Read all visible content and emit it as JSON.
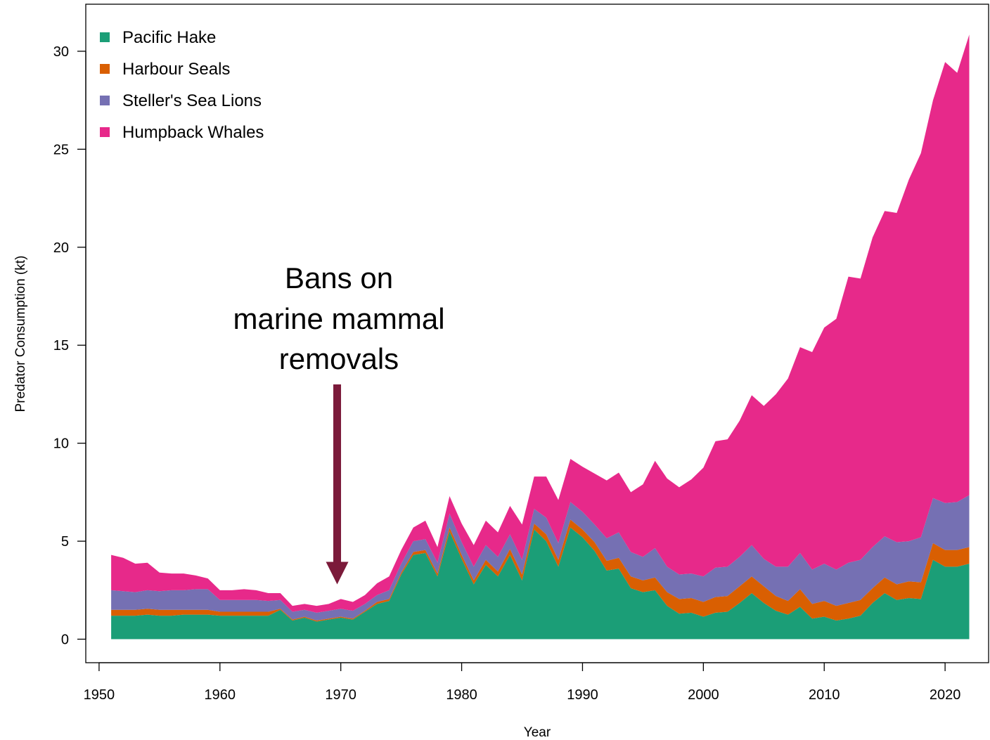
{
  "chart_data": {
    "type": "area",
    "stacked": true,
    "title": "",
    "xlabel": "Year",
    "ylabel": "Predator Consumption (kt)",
    "xlim": [
      1948.9,
      2023.6
    ],
    "ylim": [
      -1.2,
      32.4
    ],
    "x_ticks": [
      1950,
      1960,
      1970,
      1980,
      1990,
      2000,
      2010,
      2020
    ],
    "y_ticks": [
      0,
      5,
      10,
      15,
      20,
      25,
      30
    ],
    "grid": false,
    "legend_position": "top-left",
    "x": [
      1951,
      1952,
      1953,
      1954,
      1955,
      1956,
      1957,
      1958,
      1959,
      1960,
      1961,
      1962,
      1963,
      1964,
      1965,
      1966,
      1967,
      1968,
      1969,
      1970,
      1971,
      1972,
      1973,
      1974,
      1975,
      1976,
      1977,
      1978,
      1979,
      1980,
      1981,
      1982,
      1983,
      1984,
      1985,
      1986,
      1987,
      1988,
      1989,
      1990,
      1991,
      1992,
      1993,
      1994,
      1995,
      1996,
      1997,
      1998,
      1999,
      2000,
      2001,
      2002,
      2003,
      2004,
      2005,
      2006,
      2007,
      2008,
      2009,
      2010,
      2011,
      2012,
      2013,
      2014,
      2015,
      2016,
      2017,
      2018,
      2019,
      2020,
      2021,
      2022
    ],
    "series": [
      {
        "name": "Pacific Hake",
        "color": "#1b9e77",
        "values": [
          1.2,
          1.2,
          1.2,
          1.25,
          1.2,
          1.2,
          1.25,
          1.25,
          1.25,
          1.2,
          1.2,
          1.2,
          1.2,
          1.2,
          1.5,
          0.95,
          1.1,
          0.9,
          1.0,
          1.1,
          1.0,
          1.4,
          1.8,
          1.95,
          3.3,
          4.3,
          4.4,
          3.2,
          5.5,
          4.1,
          2.8,
          3.8,
          3.2,
          4.3,
          3.0,
          5.6,
          5.0,
          3.7,
          5.7,
          5.2,
          4.5,
          3.5,
          3.6,
          2.6,
          2.4,
          2.5,
          1.7,
          1.3,
          1.35,
          1.15,
          1.35,
          1.4,
          1.85,
          2.35,
          1.85,
          1.45,
          1.25,
          1.65,
          1.05,
          1.15,
          0.95,
          1.05,
          1.2,
          1.85,
          2.35,
          2.0,
          2.1,
          2.05,
          4.05,
          3.7,
          3.7,
          3.85
        ]
      },
      {
        "name": "Harbour Seals",
        "color": "#d95f02",
        "values": [
          0.3,
          0.3,
          0.3,
          0.3,
          0.3,
          0.3,
          0.25,
          0.25,
          0.25,
          0.2,
          0.2,
          0.2,
          0.2,
          0.2,
          0.05,
          0.05,
          0.05,
          0.05,
          0.05,
          0.05,
          0.05,
          0.05,
          0.1,
          0.1,
          0.1,
          0.15,
          0.15,
          0.15,
          0.2,
          0.2,
          0.2,
          0.25,
          0.25,
          0.3,
          0.3,
          0.3,
          0.35,
          0.35,
          0.4,
          0.4,
          0.45,
          0.5,
          0.55,
          0.6,
          0.6,
          0.65,
          0.7,
          0.75,
          0.75,
          0.75,
          0.8,
          0.8,
          0.85,
          0.85,
          0.85,
          0.75,
          0.7,
          0.9,
          0.75,
          0.8,
          0.75,
          0.8,
          0.8,
          0.75,
          0.8,
          0.8,
          0.85,
          0.85,
          0.85,
          0.85,
          0.85,
          0.85
        ]
      },
      {
        "name": "Steller's Sea Lions",
        "color": "#7570b3",
        "values": [
          1.0,
          0.95,
          0.9,
          0.95,
          0.95,
          1.0,
          1.0,
          1.05,
          1.05,
          0.6,
          0.6,
          0.6,
          0.6,
          0.55,
          0.45,
          0.4,
          0.35,
          0.4,
          0.4,
          0.4,
          0.4,
          0.35,
          0.35,
          0.45,
          0.45,
          0.55,
          0.55,
          0.55,
          0.7,
          0.65,
          0.7,
          0.75,
          0.75,
          0.75,
          0.75,
          0.75,
          0.85,
          0.85,
          0.9,
          0.9,
          0.9,
          1.15,
          1.3,
          1.25,
          1.2,
          1.5,
          1.3,
          1.25,
          1.25,
          1.3,
          1.5,
          1.5,
          1.5,
          1.6,
          1.4,
          1.5,
          1.75,
          1.85,
          1.75,
          1.9,
          1.85,
          2.05,
          2.05,
          2.1,
          2.1,
          2.15,
          2.05,
          2.3,
          2.3,
          2.4,
          2.45,
          2.65
        ]
      },
      {
        "name": "Humpback Whales",
        "color": "#e7298a",
        "values": [
          1.8,
          1.7,
          1.45,
          1.4,
          0.95,
          0.85,
          0.85,
          0.7,
          0.55,
          0.5,
          0.5,
          0.55,
          0.5,
          0.4,
          0.35,
          0.3,
          0.3,
          0.35,
          0.35,
          0.5,
          0.45,
          0.45,
          0.6,
          0.7,
          0.7,
          0.7,
          0.95,
          0.8,
          0.9,
          0.95,
          1.1,
          1.25,
          1.25,
          1.45,
          1.8,
          1.65,
          2.1,
          2.2,
          2.2,
          2.3,
          2.6,
          2.95,
          3.05,
          3.05,
          3.7,
          4.45,
          4.5,
          4.45,
          4.8,
          5.55,
          6.45,
          6.5,
          6.95,
          7.65,
          7.8,
          8.8,
          9.6,
          10.5,
          11.1,
          12.05,
          12.8,
          14.6,
          14.35,
          15.8,
          16.6,
          16.8,
          18.45,
          19.6,
          20.3,
          22.5,
          21.9,
          23.5
        ]
      }
    ],
    "annotation": {
      "lines": [
        "Bans on",
        "marine mammal",
        "removals"
      ],
      "color": "#7b1a3a",
      "arrow_x": 1969.7,
      "arrow_from_y": 13.0,
      "arrow_to_y": 2.8
    }
  }
}
